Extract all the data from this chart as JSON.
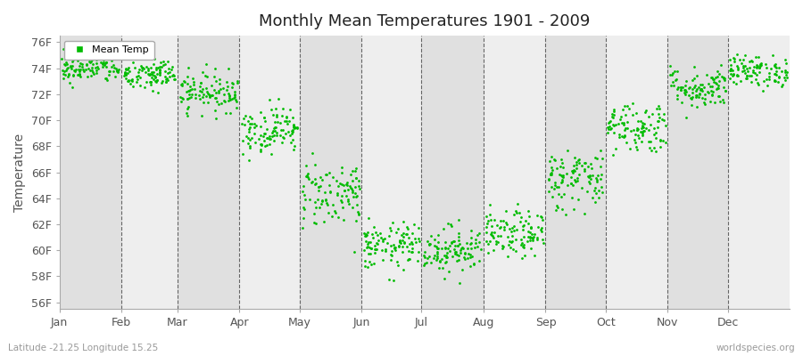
{
  "title": "Monthly Mean Temperatures 1901 - 2009",
  "ylabel": "Temperature",
  "xlabel_labels": [
    "Jan",
    "Feb",
    "Mar",
    "Apr",
    "May",
    "Jun",
    "Jul",
    "Aug",
    "Sep",
    "Oct",
    "Nov",
    "Dec"
  ],
  "ytick_labels": [
    "56F",
    "58F",
    "60F",
    "62F",
    "64F",
    "66F",
    "68F",
    "70F",
    "72F",
    "74F",
    "76F"
  ],
  "ytick_values": [
    56,
    58,
    60,
    62,
    64,
    66,
    68,
    70,
    72,
    74,
    76
  ],
  "ylim": [
    55.5,
    76.5
  ],
  "dot_color": "#00bb00",
  "bg_color_dark": "#e0e0e0",
  "bg_color_light": "#eeeeee",
  "legend_label": "Mean Temp",
  "footer_left": "Latitude -21.25 Longitude 15.25",
  "footer_right": "worldspecies.org",
  "monthly_means": [
    74.0,
    73.5,
    72.2,
    69.3,
    64.4,
    60.3,
    60.1,
    61.2,
    65.5,
    69.5,
    72.5,
    73.8
  ],
  "monthly_stds": [
    0.55,
    0.65,
    0.75,
    0.9,
    1.3,
    0.9,
    0.9,
    0.9,
    1.2,
    1.0,
    0.8,
    0.6
  ],
  "n_years": 109,
  "seed": 42,
  "month_days": [
    31,
    28,
    31,
    30,
    31,
    30,
    31,
    31,
    30,
    31,
    30,
    31
  ],
  "total_days": 365
}
